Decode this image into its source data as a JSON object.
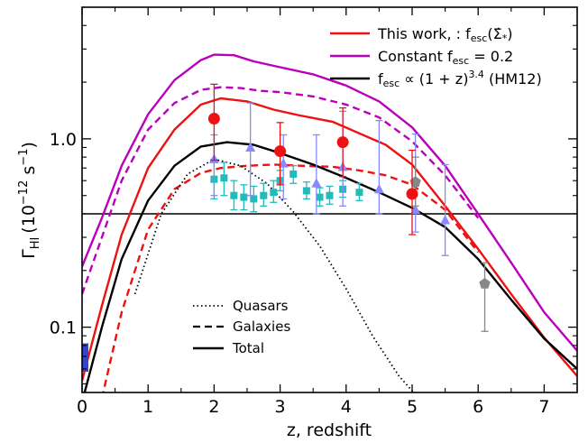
{
  "chart_data": {
    "type": "line",
    "xlabel": "z, redshift",
    "ylabel_main": "Γ",
    "ylabel_sub": "HI",
    "ylabel_unit": "(10",
    "ylabel_exp": "−12",
    "ylabel_unit2": " s",
    "ylabel_exp2": "−1",
    "ylabel_close": ")",
    "xlim": [
      0,
      7.5
    ],
    "ylim": [
      0.045,
      5.0
    ],
    "yscale": "log",
    "x_ticks": [
      "0",
      "1",
      "2",
      "3",
      "4",
      "5",
      "6",
      "7"
    ],
    "y_ticks": [
      {
        "value": 1.0,
        "label": "1.0"
      },
      {
        "value": 0.1,
        "label": "0.1"
      }
    ],
    "grid": false,
    "legend_placement": "top-right",
    "legend": [
      {
        "parts": [
          "This work, : f",
          "esc",
          "(Σ̇",
          "*",
          ")"
        ],
        "color": "#ee1111"
      },
      {
        "parts": [
          "Constant f",
          "esc",
          " = 0.2"
        ],
        "color": "#bb00bb"
      },
      {
        "parts": [
          "f",
          "esc",
          " ∝ (1 + z)",
          "3.4",
          " (HM12)"
        ],
        "color": "#000000"
      }
    ],
    "legend2_placement": "bottom-center",
    "legend2": [
      {
        "label": "Quasars",
        "style": "dotted"
      },
      {
        "label": "Galaxies",
        "style": "dashed"
      },
      {
        "label": "Total",
        "style": "solid"
      }
    ],
    "hline_y": 0.4,
    "series": [
      {
        "name": "This work total",
        "color": "#ee1111",
        "dash": "solid",
        "x": [
          0,
          0.3,
          0.6,
          1.0,
          1.4,
          1.8,
          2.1,
          2.5,
          2.9,
          3.3,
          3.8,
          4.2,
          4.6,
          5.0,
          5.5,
          6.0,
          6.5,
          7.0,
          7.5
        ],
        "y": [
          0.052,
          0.13,
          0.31,
          0.7,
          1.12,
          1.52,
          1.64,
          1.58,
          1.43,
          1.33,
          1.23,
          1.07,
          0.93,
          0.73,
          0.44,
          0.26,
          0.15,
          0.088,
          0.055
        ]
      },
      {
        "name": "This work galaxies",
        "color": "#ee1111",
        "dash": "dashed",
        "x": [
          0.3,
          0.6,
          1.0,
          1.4,
          1.8,
          2.1,
          2.5,
          2.9,
          3.3,
          3.8,
          4.2,
          4.6,
          5.0,
          5.5,
          6.0
        ],
        "y": [
          0.042,
          0.12,
          0.33,
          0.54,
          0.66,
          0.7,
          0.72,
          0.73,
          0.72,
          0.71,
          0.68,
          0.64,
          0.57,
          0.42,
          0.25
        ]
      },
      {
        "name": "Constant total",
        "color": "#bb00bb",
        "dash": "solid",
        "x": [
          0,
          0.3,
          0.6,
          1.0,
          1.4,
          1.8,
          2.0,
          2.3,
          2.6,
          3.0,
          3.5,
          4.0,
          4.5,
          5.0,
          5.5,
          6.0,
          6.5,
          7.0,
          7.5
        ],
        "y": [
          0.21,
          0.38,
          0.72,
          1.35,
          2.05,
          2.62,
          2.8,
          2.78,
          2.58,
          2.4,
          2.2,
          1.92,
          1.58,
          1.15,
          0.72,
          0.4,
          0.22,
          0.12,
          0.075
        ]
      },
      {
        "name": "Constant galaxies",
        "color": "#bb00bb",
        "dash": "dashed",
        "x": [
          0,
          0.3,
          0.6,
          1.0,
          1.4,
          1.8,
          2.1,
          2.4,
          2.7,
          3.0,
          3.5,
          4.0,
          4.5,
          5.0,
          5.5,
          6.0
        ],
        "y": [
          0.15,
          0.3,
          0.6,
          1.12,
          1.55,
          1.82,
          1.88,
          1.86,
          1.8,
          1.77,
          1.68,
          1.52,
          1.3,
          0.97,
          0.64,
          0.38
        ]
      },
      {
        "name": "HM12 total",
        "color": "#000000",
        "dash": "solid",
        "x": [
          0,
          0.3,
          0.6,
          1.0,
          1.4,
          1.8,
          2.2,
          2.6,
          3.0,
          3.5,
          4.0,
          4.5,
          5.0,
          5.5,
          6.0,
          6.5,
          7.0,
          7.5
        ],
        "y": [
          0.04,
          0.1,
          0.23,
          0.47,
          0.72,
          0.91,
          0.96,
          0.93,
          0.84,
          0.73,
          0.62,
          0.52,
          0.43,
          0.34,
          0.23,
          0.14,
          0.087,
          0.06
        ]
      },
      {
        "name": "Quasars",
        "color": "#000000",
        "dash": "dotted",
        "x": [
          0.8,
          1.2,
          1.6,
          2.0,
          2.4,
          2.8,
          3.2,
          3.6,
          4.0,
          4.4,
          4.8,
          5.1
        ],
        "y": [
          0.15,
          0.4,
          0.65,
          0.78,
          0.72,
          0.58,
          0.41,
          0.27,
          0.16,
          0.09,
          0.055,
          0.042
        ]
      }
    ],
    "points": [
      {
        "group": "red-circles",
        "color": "#ee1111",
        "marker": "circle",
        "data": [
          {
            "x": 2.0,
            "y": 1.28,
            "lo": 0.77,
            "hi": 1.95
          },
          {
            "x": 3.0,
            "y": 0.86,
            "lo": 0.57,
            "hi": 1.22
          },
          {
            "x": 3.95,
            "y": 0.96,
            "lo": 0.63,
            "hi": 1.46
          },
          {
            "x": 5.0,
            "y": 0.51,
            "lo": 0.31,
            "hi": 0.87
          }
        ]
      },
      {
        "group": "blue-triangles",
        "color": "#8888ff",
        "marker": "triangle",
        "data": [
          {
            "x": 2.0,
            "y": 0.78,
            "lo": 0.5,
            "hi": 1.05
          },
          {
            "x": 2.55,
            "y": 0.9,
            "lo": 0.5,
            "hi": 1.55
          },
          {
            "x": 3.05,
            "y": 0.74,
            "lo": 0.48,
            "hi": 1.05
          },
          {
            "x": 3.55,
            "y": 0.58,
            "lo": 0.4,
            "hi": 1.05
          },
          {
            "x": 3.95,
            "y": 0.71,
            "lo": 0.44,
            "hi": 1.4
          },
          {
            "x": 4.5,
            "y": 0.54,
            "lo": 0.4,
            "hi": 1.25
          },
          {
            "x": 5.05,
            "y": 0.42,
            "lo": 0.32,
            "hi": 1.06
          },
          {
            "x": 5.5,
            "y": 0.37,
            "lo": 0.24,
            "hi": 0.73
          }
        ]
      },
      {
        "group": "cyan-squares",
        "color": "#22bbbb",
        "marker": "square",
        "data": [
          {
            "x": 2.0,
            "y": 0.61,
            "lo": 0.48,
            "hi": 0.78
          },
          {
            "x": 2.15,
            "y": 0.62,
            "lo": 0.5,
            "hi": 0.75
          },
          {
            "x": 2.3,
            "y": 0.5,
            "lo": 0.42,
            "hi": 0.6
          },
          {
            "x": 2.45,
            "y": 0.49,
            "lo": 0.42,
            "hi": 0.57
          },
          {
            "x": 2.6,
            "y": 0.48,
            "lo": 0.41,
            "hi": 0.56
          },
          {
            "x": 2.75,
            "y": 0.5,
            "lo": 0.44,
            "hi": 0.58
          },
          {
            "x": 2.9,
            "y": 0.52,
            "lo": 0.46,
            "hi": 0.6
          },
          {
            "x": 3.0,
            "y": 0.6,
            "lo": 0.53,
            "hi": 0.68
          },
          {
            "x": 3.2,
            "y": 0.65,
            "lo": 0.58,
            "hi": 0.72
          },
          {
            "x": 3.4,
            "y": 0.53,
            "lo": 0.48,
            "hi": 0.59
          },
          {
            "x": 3.6,
            "y": 0.49,
            "lo": 0.44,
            "hi": 0.55
          },
          {
            "x": 3.75,
            "y": 0.5,
            "lo": 0.45,
            "hi": 0.56
          },
          {
            "x": 3.95,
            "y": 0.54,
            "lo": 0.49,
            "hi": 0.6
          },
          {
            "x": 4.2,
            "y": 0.52,
            "lo": 0.47,
            "hi": 0.58
          }
        ]
      },
      {
        "group": "gray-pentagons",
        "color": "#888888",
        "marker": "pentagon",
        "data": [
          {
            "x": 5.05,
            "y": 0.59,
            "lo": 0.44,
            "hi": 0.8
          },
          {
            "x": 6.1,
            "y": 0.17,
            "lo": 0.095,
            "hi": 0.22
          }
        ]
      },
      {
        "group": "blue-band",
        "color": "#3344cc",
        "marker": "band",
        "data": [
          {
            "x": 0.03,
            "y": 0.07,
            "lo": 0.058,
            "hi": 0.082
          }
        ]
      }
    ]
  }
}
